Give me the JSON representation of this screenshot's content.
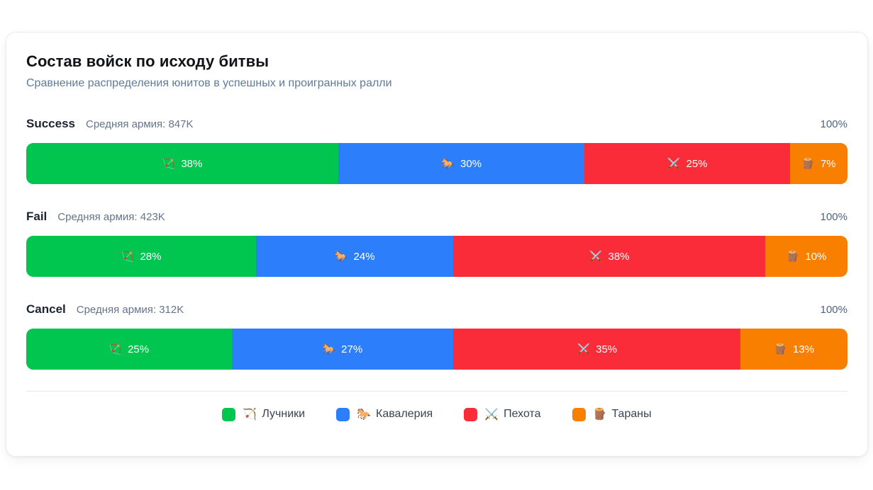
{
  "header": {
    "title": "Состав войск по исходу битвы",
    "subtitle": "Сравнение распределения юнитов в успешных и проигранных ралли"
  },
  "colors": {
    "archers": "#00c54f",
    "cavalry": "#2d7efa",
    "infantry": "#fa2c3a",
    "rams": "#f87f00"
  },
  "chart_data": {
    "type": "bar",
    "variant": "horizontal-stacked-100-percent",
    "title": "Состав войск по исходу битвы",
    "subtitle": "Сравнение распределения юнитов в успешных и проигранных ралли",
    "categories": [
      "Success",
      "Fail",
      "Cancel"
    ],
    "category_subtitles": [
      "Средняя армия: 847K",
      "Средняя армия: 423K",
      "Средняя армия: 312K"
    ],
    "xlim": [
      0,
      100
    ],
    "unit": "%",
    "axis_max_label": "100%",
    "legend_position": "bottom-center",
    "series": [
      {
        "name": "Лучники",
        "icon": "🏹",
        "color": "#00c54f",
        "values": [
          38,
          28,
          25
        ]
      },
      {
        "name": "Кавалерия",
        "icon": "🐎",
        "color": "#2d7efa",
        "values": [
          30,
          24,
          27
        ]
      },
      {
        "name": "Пехота",
        "icon": "⚔️",
        "color": "#fa2c3a",
        "values": [
          25,
          38,
          35
        ]
      },
      {
        "name": "Тараны",
        "icon": "🪵",
        "color": "#f87f00",
        "values": [
          7,
          10,
          13
        ]
      }
    ]
  },
  "groups": [
    {
      "name": "Success",
      "avg": "Средняя армия: 847K",
      "max": "100%",
      "segments": [
        {
          "icon": "🏹",
          "label": "38%",
          "width": 38,
          "color": "#00c54f"
        },
        {
          "icon": "🐎",
          "label": "30%",
          "width": 30,
          "color": "#2d7efa"
        },
        {
          "icon": "⚔️",
          "label": "25%",
          "width": 25,
          "color": "#fa2c3a"
        },
        {
          "icon": "🪵",
          "label": "7%",
          "width": 7,
          "color": "#f87f00"
        }
      ]
    },
    {
      "name": "Fail",
      "avg": "Средняя армия: 423K",
      "max": "100%",
      "segments": [
        {
          "icon": "🏹",
          "label": "28%",
          "width": 28,
          "color": "#00c54f"
        },
        {
          "icon": "🐎",
          "label": "24%",
          "width": 24,
          "color": "#2d7efa"
        },
        {
          "icon": "⚔️",
          "label": "38%",
          "width": 38,
          "color": "#fa2c3a"
        },
        {
          "icon": "🪵",
          "label": "10%",
          "width": 10,
          "color": "#f87f00"
        }
      ]
    },
    {
      "name": "Cancel",
      "avg": "Средняя армия: 312K",
      "max": "100%",
      "segments": [
        {
          "icon": "🏹",
          "label": "25%",
          "width": 25,
          "color": "#00c54f"
        },
        {
          "icon": "🐎",
          "label": "27%",
          "width": 27,
          "color": "#2d7efa"
        },
        {
          "icon": "⚔️",
          "label": "35%",
          "width": 35,
          "color": "#fa2c3a"
        },
        {
          "icon": "🪵",
          "label": "13%",
          "width": 13,
          "color": "#f87f00"
        }
      ]
    }
  ],
  "legend": {
    "items": [
      {
        "icon": "🏹",
        "label": "Лучники",
        "color": "#00c54f"
      },
      {
        "icon": "🐎",
        "label": "Кавалерия",
        "color": "#2d7efa"
      },
      {
        "icon": "⚔️",
        "label": "Пехота",
        "color": "#fa2c3a"
      },
      {
        "icon": "🪵",
        "label": "Тараны",
        "color": "#f87f00"
      }
    ]
  }
}
